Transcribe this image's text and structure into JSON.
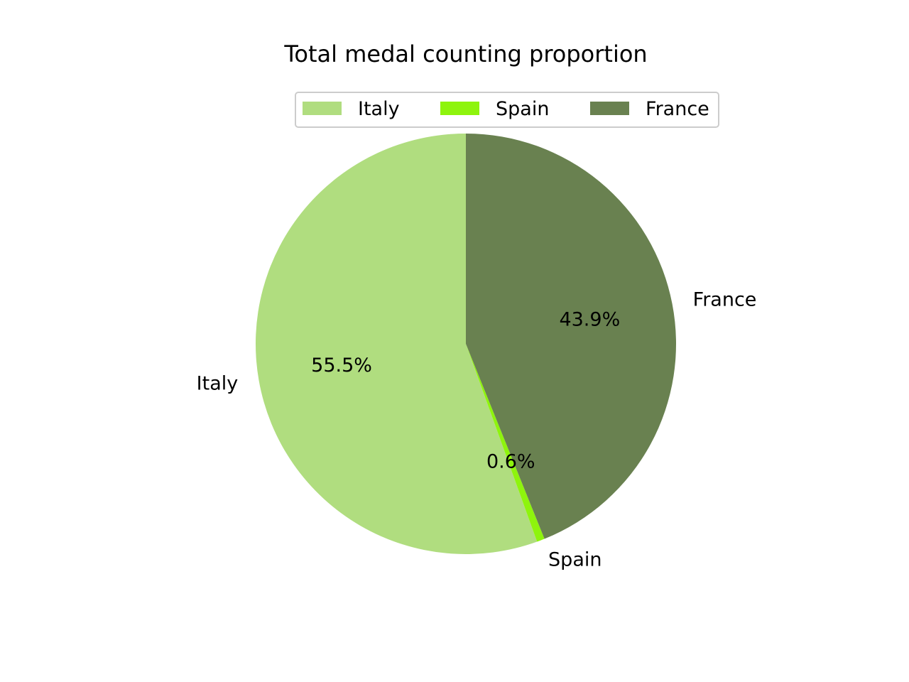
{
  "chart_data": {
    "type": "pie",
    "title": "Total medal counting proportion",
    "categories": [
      "Italy",
      "Spain",
      "France"
    ],
    "values": [
      55.5,
      0.6,
      43.9
    ],
    "value_labels": [
      "55.5%",
      "0.6%",
      "43.9%"
    ],
    "colors": [
      "#b0dd7f",
      "#8ef40d",
      "#698150"
    ],
    "start_angle_deg": 90,
    "direction": "counterclockwise",
    "legend": {
      "placement": "top-center",
      "columns": 3,
      "entries": [
        "Italy",
        "Spain",
        "France"
      ]
    }
  }
}
